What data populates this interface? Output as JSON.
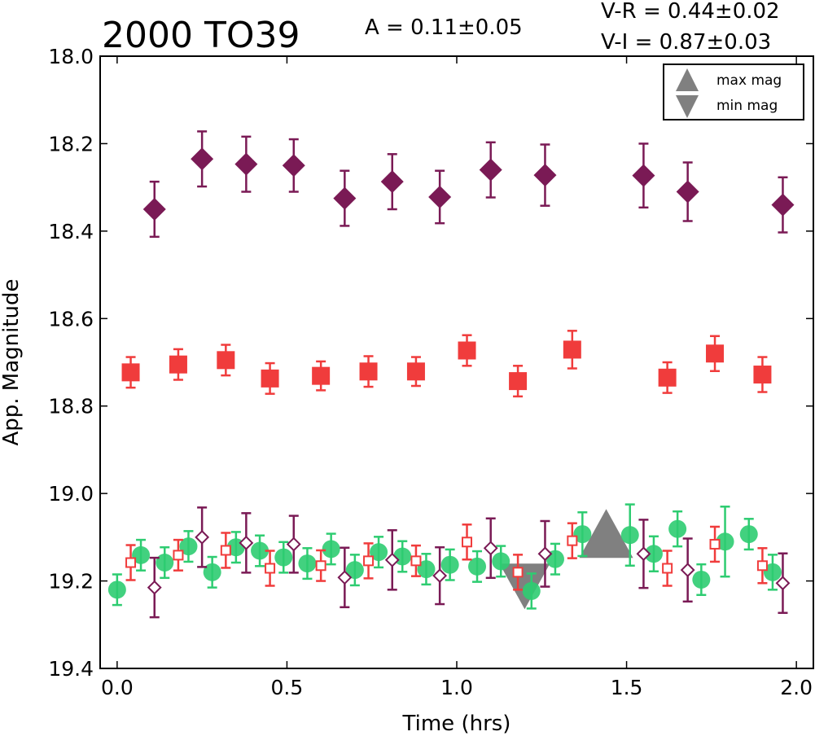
{
  "chart_data": {
    "type": "scatter",
    "title": "2000 TO39",
    "amplitude_text": "A  = 0.11±0.05",
    "color_vr_text": "V-R = 0.44±0.02",
    "color_vi_text": "V-I  = 0.87±0.03",
    "xlabel": "Time (hrs)",
    "ylabel": "App. Magnitude",
    "xlim": [
      -0.05,
      2.05
    ],
    "ylim": [
      19.4,
      18.0
    ],
    "y_inverted": true,
    "grid": false,
    "x_ticks": [
      "0.0",
      "0.5",
      "1.0",
      "1.5",
      "2.0"
    ],
    "y_ticks": [
      "18.0",
      "18.2",
      "18.4",
      "18.6",
      "18.8",
      "19.0",
      "19.2",
      "19.4"
    ],
    "legend": {
      "position": "top-right",
      "entries": [
        {
          "label": "max mag",
          "marker": "triangle-up",
          "color": "#808080"
        },
        {
          "label": "min mag",
          "marker": "triangle-down",
          "color": "#808080"
        }
      ]
    },
    "extrema_markers": {
      "max_mag": {
        "x": 1.44,
        "y": 19.11,
        "color": "#808080"
      },
      "min_mag": {
        "x": 1.2,
        "y": 19.19,
        "color": "#808080"
      }
    },
    "series": [
      {
        "marker": "diamond-filled",
        "color": "#7a1a55",
        "points": [
          {
            "x": 0.11,
            "y": 18.35,
            "err": 0.063
          },
          {
            "x": 0.25,
            "y": 18.235,
            "err": 0.063
          },
          {
            "x": 0.38,
            "y": 18.247,
            "err": 0.063
          },
          {
            "x": 0.52,
            "y": 18.25,
            "err": 0.06
          },
          {
            "x": 0.67,
            "y": 18.325,
            "err": 0.063
          },
          {
            "x": 0.81,
            "y": 18.287,
            "err": 0.063
          },
          {
            "x": 0.95,
            "y": 18.322,
            "err": 0.06
          },
          {
            "x": 1.1,
            "y": 18.26,
            "err": 0.063
          },
          {
            "x": 1.26,
            "y": 18.272,
            "err": 0.07
          },
          {
            "x": 1.55,
            "y": 18.273,
            "err": 0.073
          },
          {
            "x": 1.68,
            "y": 18.31,
            "err": 0.067
          },
          {
            "x": 1.96,
            "y": 18.34,
            "err": 0.063
          }
        ]
      },
      {
        "marker": "square-filled",
        "color": "#f03c3c",
        "points": [
          {
            "x": 0.04,
            "y": 18.723,
            "err": 0.035
          },
          {
            "x": 0.18,
            "y": 18.705,
            "err": 0.035
          },
          {
            "x": 0.32,
            "y": 18.695,
            "err": 0.035
          },
          {
            "x": 0.45,
            "y": 18.737,
            "err": 0.035
          },
          {
            "x": 0.6,
            "y": 18.731,
            "err": 0.033
          },
          {
            "x": 0.74,
            "y": 18.721,
            "err": 0.035
          },
          {
            "x": 0.88,
            "y": 18.721,
            "err": 0.033
          },
          {
            "x": 1.03,
            "y": 18.673,
            "err": 0.035
          },
          {
            "x": 1.18,
            "y": 18.743,
            "err": 0.035
          },
          {
            "x": 1.34,
            "y": 18.671,
            "err": 0.043
          },
          {
            "x": 1.62,
            "y": 18.735,
            "err": 0.035
          },
          {
            "x": 1.76,
            "y": 18.68,
            "err": 0.04
          },
          {
            "x": 1.9,
            "y": 18.728,
            "err": 0.04
          }
        ]
      },
      {
        "marker": "circle-filled",
        "color": "#2ecc71",
        "points": [
          {
            "x": 0.0,
            "y": 19.22,
            "err": 0.035
          },
          {
            "x": 0.07,
            "y": 19.141,
            "err": 0.035
          },
          {
            "x": 0.14,
            "y": 19.158,
            "err": 0.035
          },
          {
            "x": 0.21,
            "y": 19.121,
            "err": 0.035
          },
          {
            "x": 0.28,
            "y": 19.18,
            "err": 0.035
          },
          {
            "x": 0.35,
            "y": 19.123,
            "err": 0.035
          },
          {
            "x": 0.42,
            "y": 19.131,
            "err": 0.035
          },
          {
            "x": 0.49,
            "y": 19.146,
            "err": 0.035
          },
          {
            "x": 0.56,
            "y": 19.16,
            "err": 0.035
          },
          {
            "x": 0.63,
            "y": 19.127,
            "err": 0.035
          },
          {
            "x": 0.7,
            "y": 19.175,
            "err": 0.035
          },
          {
            "x": 0.77,
            "y": 19.134,
            "err": 0.035
          },
          {
            "x": 0.84,
            "y": 19.144,
            "err": 0.035
          },
          {
            "x": 0.91,
            "y": 19.173,
            "err": 0.035
          },
          {
            "x": 0.98,
            "y": 19.163,
            "err": 0.035
          },
          {
            "x": 1.06,
            "y": 19.167,
            "err": 0.035
          },
          {
            "x": 1.13,
            "y": 19.155,
            "err": 0.035
          },
          {
            "x": 1.22,
            "y": 19.223,
            "err": 0.04
          },
          {
            "x": 1.29,
            "y": 19.15,
            "err": 0.035
          },
          {
            "x": 1.37,
            "y": 19.093,
            "err": 0.05
          },
          {
            "x": 1.51,
            "y": 19.095,
            "err": 0.07
          },
          {
            "x": 1.58,
            "y": 19.138,
            "err": 0.04
          },
          {
            "x": 1.65,
            "y": 19.081,
            "err": 0.04
          },
          {
            "x": 1.72,
            "y": 19.197,
            "err": 0.035
          },
          {
            "x": 1.79,
            "y": 19.11,
            "err": 0.08
          },
          {
            "x": 1.86,
            "y": 19.093,
            "err": 0.035
          },
          {
            "x": 1.93,
            "y": 19.18,
            "err": 0.04
          }
        ]
      },
      {
        "marker": "square-open",
        "color": "#f03c3c",
        "points": [
          {
            "x": 0.04,
            "y": 19.158,
            "err": 0.04
          },
          {
            "x": 0.18,
            "y": 19.141,
            "err": 0.035
          },
          {
            "x": 0.32,
            "y": 19.13,
            "err": 0.04
          },
          {
            "x": 0.45,
            "y": 19.171,
            "err": 0.04
          },
          {
            "x": 0.6,
            "y": 19.165,
            "err": 0.035
          },
          {
            "x": 0.74,
            "y": 19.154,
            "err": 0.04
          },
          {
            "x": 0.88,
            "y": 19.154,
            "err": 0.035
          },
          {
            "x": 1.03,
            "y": 19.111,
            "err": 0.04
          },
          {
            "x": 1.18,
            "y": 19.18,
            "err": 0.04
          },
          {
            "x": 1.34,
            "y": 19.108,
            "err": 0.04
          },
          {
            "x": 1.62,
            "y": 19.171,
            "err": 0.04
          },
          {
            "x": 1.76,
            "y": 19.116,
            "err": 0.04
          },
          {
            "x": 1.9,
            "y": 19.165,
            "err": 0.04
          }
        ]
      },
      {
        "marker": "diamond-open",
        "color": "#7a1a55",
        "points": [
          {
            "x": 0.11,
            "y": 19.215,
            "err": 0.068
          },
          {
            "x": 0.25,
            "y": 19.1,
            "err": 0.068
          },
          {
            "x": 0.38,
            "y": 19.113,
            "err": 0.068
          },
          {
            "x": 0.52,
            "y": 19.116,
            "err": 0.065
          },
          {
            "x": 0.67,
            "y": 19.192,
            "err": 0.068
          },
          {
            "x": 0.81,
            "y": 19.152,
            "err": 0.068
          },
          {
            "x": 0.95,
            "y": 19.188,
            "err": 0.065
          },
          {
            "x": 1.1,
            "y": 19.125,
            "err": 0.068
          },
          {
            "x": 1.26,
            "y": 19.138,
            "err": 0.075
          },
          {
            "x": 1.55,
            "y": 19.138,
            "err": 0.078
          },
          {
            "x": 1.68,
            "y": 19.175,
            "err": 0.072
          },
          {
            "x": 1.96,
            "y": 19.205,
            "err": 0.068
          }
        ]
      }
    ]
  }
}
